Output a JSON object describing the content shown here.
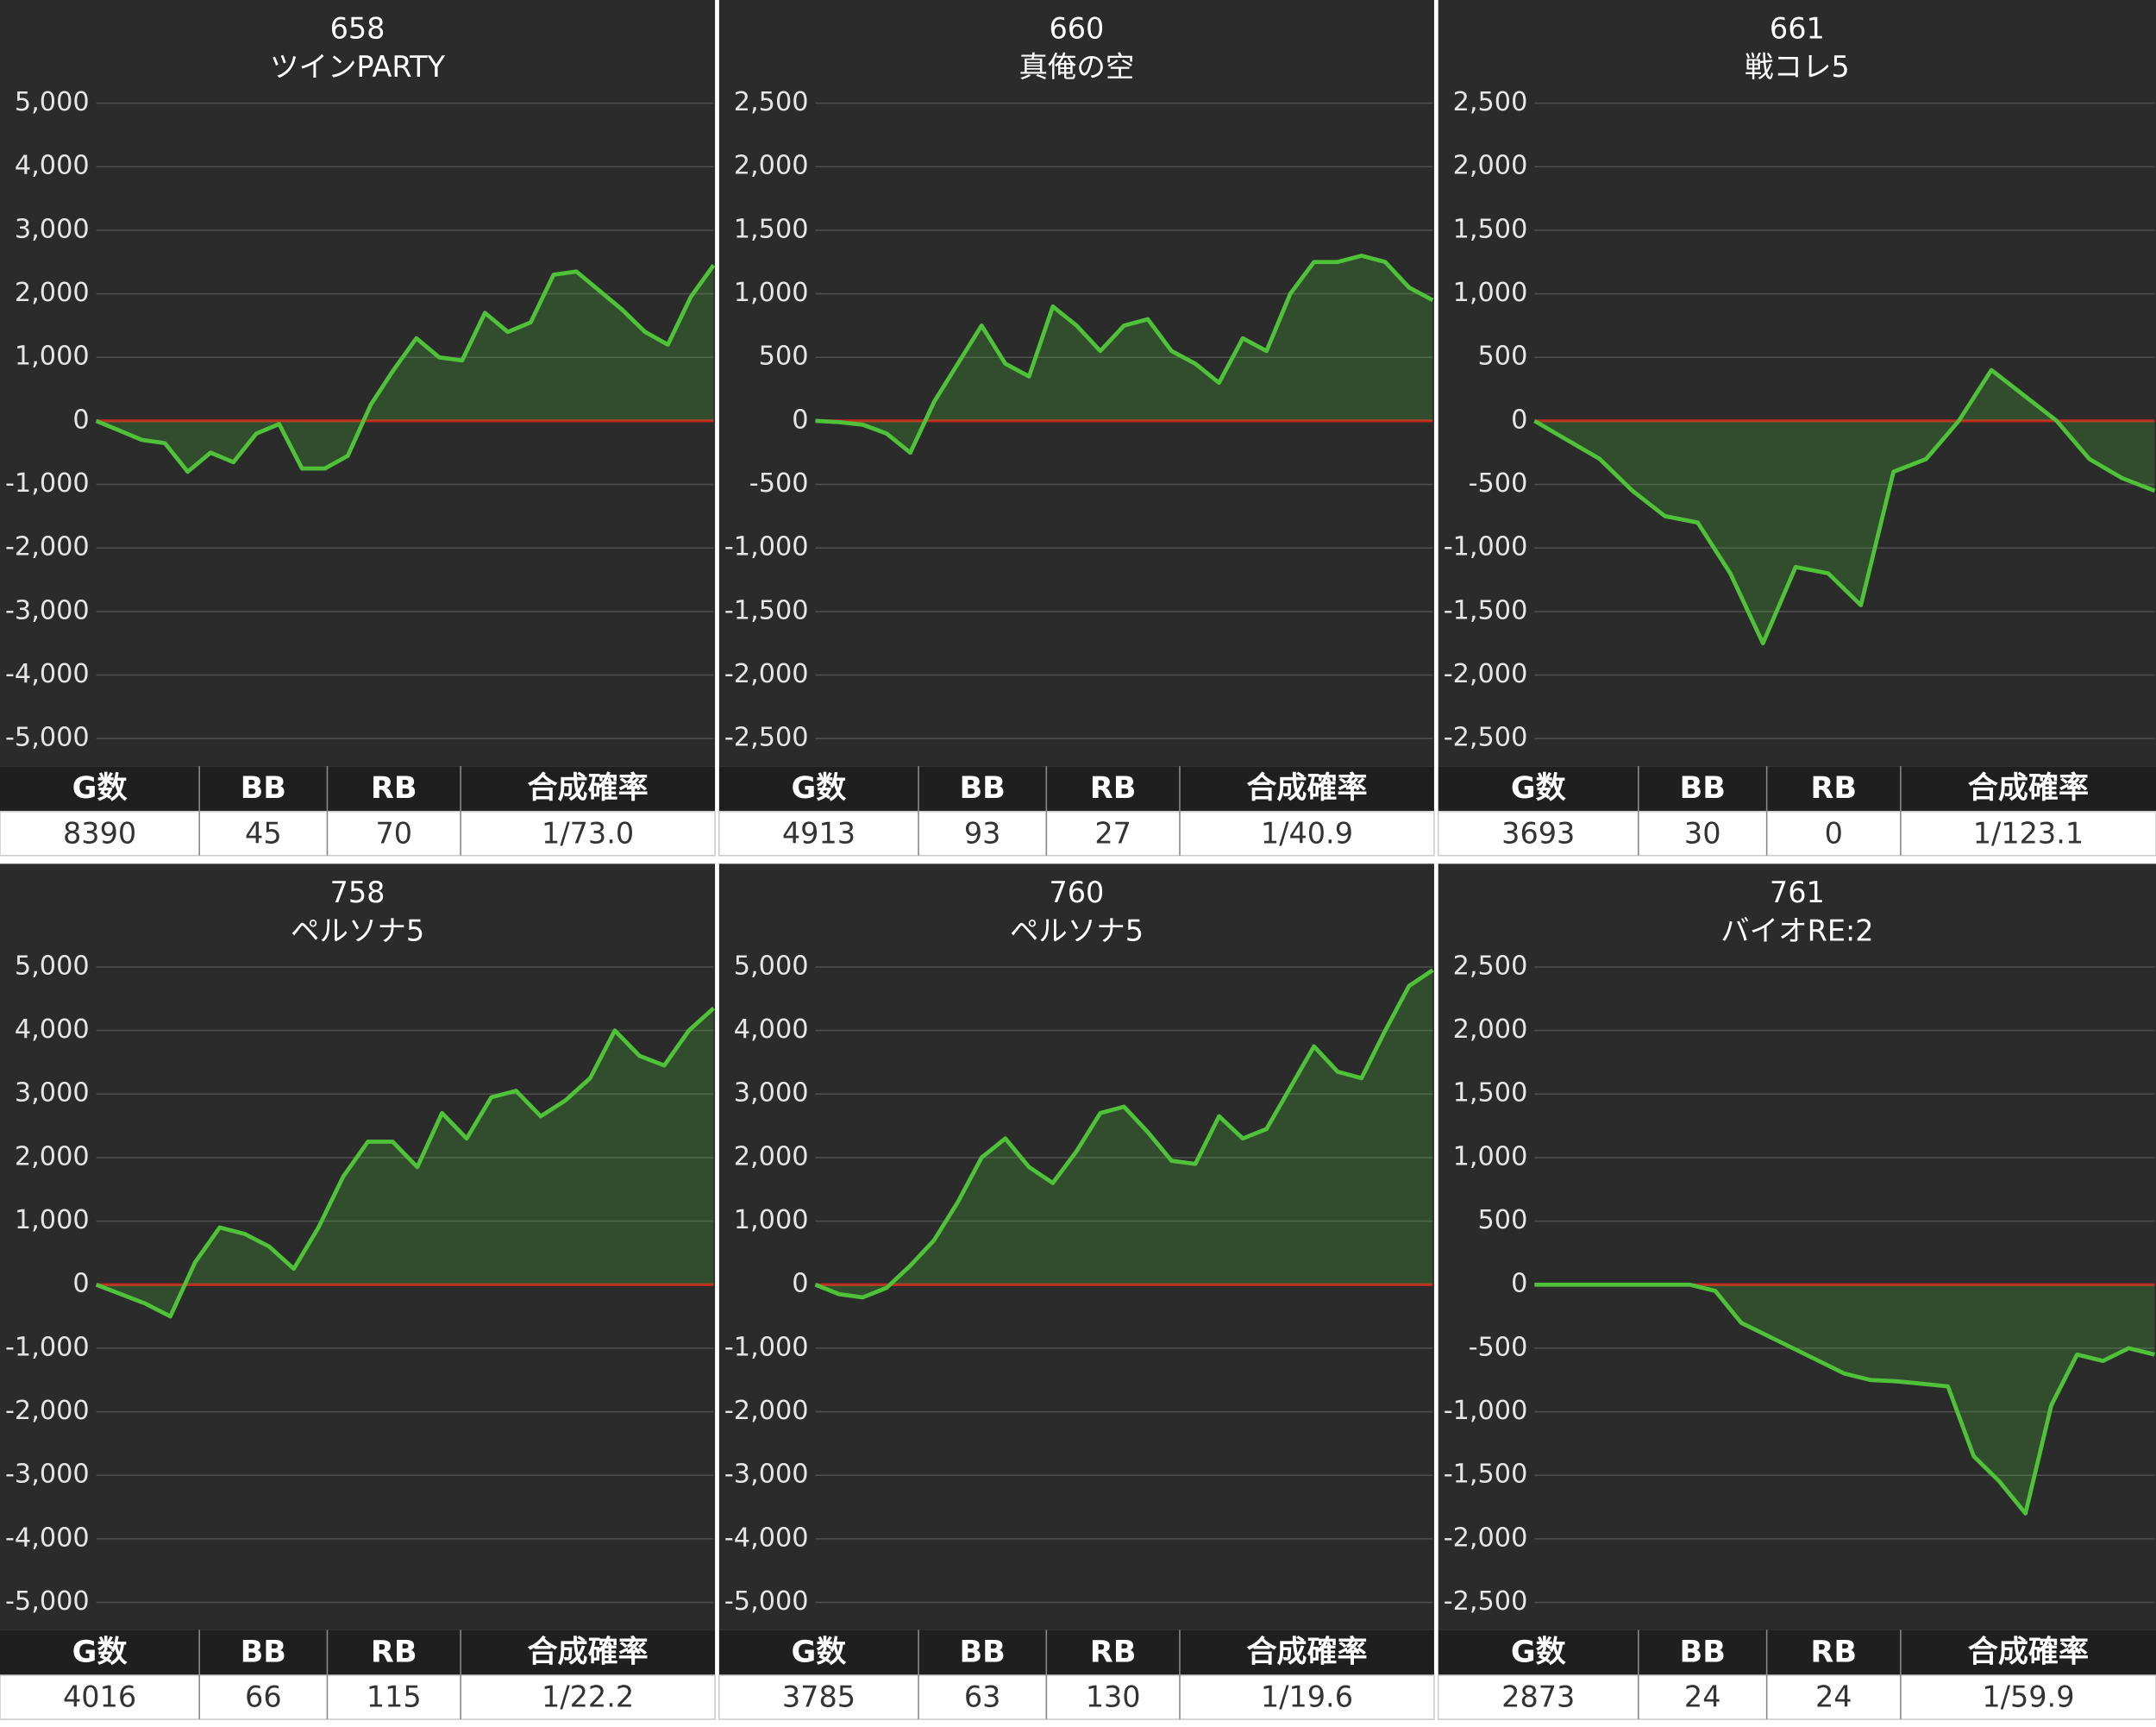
{
  "chart_data": [
    {
      "type": "line",
      "title": "658",
      "subtitle": "ツインPARTY",
      "color": "#4fc23a",
      "values": [
        0,
        -150,
        -300,
        -350,
        -800,
        -500,
        -650,
        -200,
        -50,
        -750,
        -750,
        -550,
        250,
        800,
        1300,
        1000,
        950,
        1700,
        1400,
        1550,
        2300,
        2350,
        2050,
        1750,
        1400,
        1200,
        1950,
        2450
      ],
      "ylim": [
        -5000,
        5000
      ],
      "yticks": [
        {
          "value": -5000,
          "label": "-5,000"
        },
        {
          "value": -4000,
          "label": "-4,000"
        },
        {
          "value": -3000,
          "label": "-3,000"
        },
        {
          "value": -2000,
          "label": "-2,000"
        },
        {
          "value": -1000,
          "label": "-1,000"
        },
        0,
        {
          "value": 1000,
          "label": "1,000"
        },
        {
          "value": 2000,
          "label": "2,000"
        },
        {
          "value": 3000,
          "label": "3,000"
        },
        {
          "value": 4000,
          "label": "4,000"
        },
        {
          "value": 5000,
          "label": "5,000"
        }
      ],
      "grid": true,
      "table": {
        "header": [
          "G数",
          "BB",
          "RB",
          "合成確率"
        ],
        "row": [
          8390,
          45,
          70,
          "1/73.0"
        ]
      }
    },
    {
      "type": "line",
      "title": "660",
      "subtitle": "真俺の空",
      "color": "#4fc23a",
      "values": [
        0,
        -10,
        -30,
        -100,
        -250,
        150,
        450,
        750,
        450,
        350,
        900,
        750,
        550,
        750,
        800,
        550,
        450,
        300,
        650,
        550,
        1000,
        1250,
        1250,
        1300,
        1250,
        1050,
        950
      ],
      "ylim": [
        -2500,
        2500
      ],
      "yticks": [
        {
          "value": -2500,
          "label": "-2,500"
        },
        {
          "value": -2000,
          "label": "-2,000"
        },
        {
          "value": -1500,
          "label": "-1,500"
        },
        {
          "value": -1000,
          "label": "-1,000"
        },
        -500,
        0,
        500,
        {
          "value": 1000,
          "label": "1,000"
        },
        {
          "value": 1500,
          "label": "1,500"
        },
        {
          "value": 2000,
          "label": "2,000"
        },
        {
          "value": 2500,
          "label": "2,500"
        }
      ],
      "grid": true,
      "table": {
        "header": [
          "G数",
          "BB",
          "RB",
          "合成確率"
        ],
        "row": [
          4913,
          93,
          27,
          "1/40.9"
        ]
      }
    },
    {
      "type": "line",
      "title": "661",
      "subtitle": "戦コレ5",
      "color": "#4fc23a",
      "values": [
        0,
        -150,
        -300,
        -550,
        -750,
        -800,
        -1200,
        -1750,
        -1150,
        -1200,
        -1450,
        -400,
        -300,
        0,
        400,
        200,
        0,
        -300,
        -450,
        -550
      ],
      "ylim": [
        -2500,
        2500
      ],
      "yticks": [
        {
          "value": -2500,
          "label": "-2,500"
        },
        {
          "value": -2000,
          "label": "-2,000"
        },
        {
          "value": -1500,
          "label": "-1,500"
        },
        {
          "value": -1000,
          "label": "-1,000"
        },
        -500,
        0,
        500,
        {
          "value": 1000,
          "label": "1,000"
        },
        {
          "value": 1500,
          "label": "1,500"
        },
        {
          "value": 2000,
          "label": "2,000"
        },
        {
          "value": 2500,
          "label": "2,500"
        }
      ],
      "grid": true,
      "table": {
        "header": [
          "G数",
          "BB",
          "RB",
          "合成確率"
        ],
        "row": [
          3693,
          30,
          0,
          "1/123.1"
        ]
      }
    },
    {
      "type": "line",
      "title": "758",
      "subtitle": "ペルソナ5",
      "color": "#4fc23a",
      "values": [
        0,
        -150,
        -300,
        -500,
        350,
        900,
        800,
        600,
        250,
        900,
        1700,
        2250,
        2250,
        1850,
        2700,
        2300,
        2950,
        3050,
        2650,
        2900,
        3250,
        4000,
        3600,
        3450,
        4000,
        4350
      ],
      "ylim": [
        -5000,
        5000
      ],
      "yticks": [
        {
          "value": -5000,
          "label": "-5,000"
        },
        {
          "value": -4000,
          "label": "-4,000"
        },
        {
          "value": -3000,
          "label": "-3,000"
        },
        {
          "value": -2000,
          "label": "-2,000"
        },
        {
          "value": -1000,
          "label": "-1,000"
        },
        0,
        {
          "value": 1000,
          "label": "1,000"
        },
        {
          "value": 2000,
          "label": "2,000"
        },
        {
          "value": 3000,
          "label": "3,000"
        },
        {
          "value": 4000,
          "label": "4,000"
        },
        {
          "value": 5000,
          "label": "5,000"
        }
      ],
      "grid": true,
      "table": {
        "header": [
          "G数",
          "BB",
          "RB",
          "合成確率"
        ],
        "row": [
          4016,
          66,
          115,
          "1/22.2"
        ]
      }
    },
    {
      "type": "line",
      "title": "760",
      "subtitle": "ペルソナ5",
      "color": "#4fc23a",
      "values": [
        0,
        -150,
        -200,
        -50,
        300,
        700,
        1300,
        2000,
        2300,
        1850,
        1600,
        2100,
        2700,
        2800,
        2400,
        1950,
        1900,
        2650,
        2300,
        2450,
        3100,
        3750,
        3350,
        3250,
        4000,
        4700,
        4950
      ],
      "ylim": [
        -5000,
        5000
      ],
      "yticks": [
        {
          "value": -5000,
          "label": "-5,000"
        },
        {
          "value": -4000,
          "label": "-4,000"
        },
        {
          "value": -3000,
          "label": "-3,000"
        },
        {
          "value": -2000,
          "label": "-2,000"
        },
        {
          "value": -1000,
          "label": "-1,000"
        },
        0,
        {
          "value": 1000,
          "label": "1,000"
        },
        {
          "value": 2000,
          "label": "2,000"
        },
        {
          "value": 3000,
          "label": "3,000"
        },
        {
          "value": 4000,
          "label": "4,000"
        },
        {
          "value": 5000,
          "label": "5,000"
        }
      ],
      "grid": true,
      "table": {
        "header": [
          "G数",
          "BB",
          "RB",
          "合成確率"
        ],
        "row": [
          3785,
          63,
          130,
          "1/19.6"
        ]
      }
    },
    {
      "type": "line",
      "title": "761",
      "subtitle": "バイオRE:2",
      "color": "#4fc23a",
      "values": [
        0,
        0,
        0,
        0,
        0,
        0,
        0,
        -50,
        -300,
        -400,
        -500,
        -600,
        -700,
        -750,
        -760,
        -780,
        -800,
        -1350,
        -1550,
        -1800,
        -950,
        -550,
        -600,
        -500,
        -550
      ],
      "ylim": [
        -2500,
        2500
      ],
      "yticks": [
        {
          "value": -2500,
          "label": "-2,500"
        },
        {
          "value": -2000,
          "label": "-2,000"
        },
        {
          "value": -1500,
          "label": "-1,500"
        },
        {
          "value": -1000,
          "label": "-1,000"
        },
        -500,
        0,
        500,
        {
          "value": 1000,
          "label": "1,000"
        },
        {
          "value": 1500,
          "label": "1,500"
        },
        {
          "value": 2000,
          "label": "2,000"
        },
        {
          "value": 2500,
          "label": "2,500"
        }
      ],
      "grid": true,
      "table": {
        "header": [
          "G数",
          "BB",
          "RB",
          "合成確率"
        ],
        "row": [
          2873,
          24,
          24,
          "1/59.9"
        ]
      }
    }
  ]
}
